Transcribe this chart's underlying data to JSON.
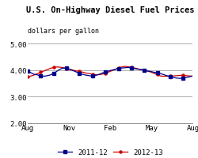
{
  "title": "U.S. On-Highway Diesel Fuel Prices",
  "subtitle": "dollars per gallon",
  "ylim": [
    2.0,
    5.0
  ],
  "yticks": [
    2.0,
    3.0,
    4.0,
    5.0
  ],
  "xtick_labels": [
    "Aug",
    "Nov",
    "Feb",
    "May",
    "Aug"
  ],
  "legend": [
    "2011-12",
    "2012-13"
  ],
  "line1_color": "#00008B",
  "line2_color": "#CC0000",
  "line1_marker": "s",
  "line2_marker": "o",
  "background_color": "#FFFFFF",
  "grid_color": "#A0A0A0",
  "title_fontsize": 7.5,
  "subtitle_fontsize": 6.0,
  "axis_fontsize": 6.5,
  "legend_fontsize": 6.5,
  "line1_y": [
    3.97,
    3.9,
    3.84,
    3.82,
    3.78,
    3.77,
    3.79,
    3.82,
    3.88,
    3.96,
    4.04,
    4.08,
    4.07,
    4.03,
    3.98,
    3.93,
    3.88,
    3.84,
    3.81,
    3.79,
    3.77,
    3.8,
    3.84,
    3.89,
    3.93,
    3.97,
    4.0,
    4.03,
    4.06,
    4.08,
    4.09,
    4.1,
    4.08,
    4.06,
    4.04,
    4.02,
    4.0,
    3.97,
    3.95,
    3.92,
    3.9,
    3.87,
    3.83,
    3.79,
    3.75,
    3.72,
    3.7,
    3.69,
    3.7,
    3.72,
    3.75,
    3.78
  ],
  "line2_y": [
    3.75,
    3.78,
    3.82,
    3.87,
    3.92,
    3.97,
    4.02,
    4.07,
    4.1,
    4.12,
    4.11,
    4.09,
    4.06,
    4.03,
    4.0,
    3.97,
    3.95,
    3.92,
    3.89,
    3.87,
    3.84,
    3.83,
    3.83,
    3.85,
    3.88,
    3.93,
    3.98,
    4.03,
    4.08,
    4.12,
    4.14,
    4.13,
    4.11,
    4.08,
    4.05,
    4.02,
    3.99,
    3.96,
    3.93,
    3.88,
    3.83,
    3.78,
    3.77,
    3.77,
    3.77,
    3.78,
    3.79,
    3.8,
    3.8,
    3.79,
    3.78,
    3.77
  ]
}
